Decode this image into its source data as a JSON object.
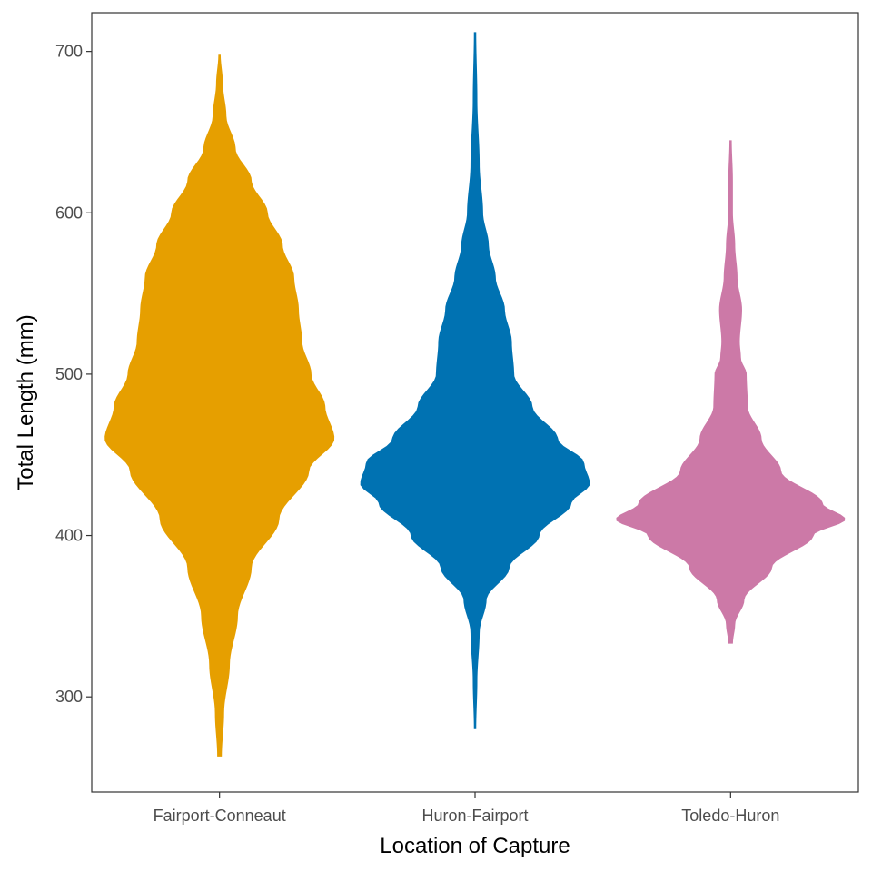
{
  "chart_data": {
    "type": "violin",
    "xlabel": "Location of Capture",
    "ylabel": "Total Length (mm)",
    "ylim": [
      241,
      724
    ],
    "y_ticks": [
      300,
      400,
      500,
      600,
      700
    ],
    "grid": false,
    "legend": "none",
    "categories": [
      "Fairport-Conneaut",
      "Huron-Fairport",
      "Toledo-Huron"
    ],
    "series": [
      {
        "category": "Fairport-Conneaut",
        "color": "#E69F00",
        "min": 263,
        "max": 698,
        "density_profile": [
          [
            263,
            0.02
          ],
          [
            290,
            0.04
          ],
          [
            320,
            0.09
          ],
          [
            350,
            0.16
          ],
          [
            380,
            0.28
          ],
          [
            410,
            0.52
          ],
          [
            440,
            0.78
          ],
          [
            460,
            1.0
          ],
          [
            480,
            0.92
          ],
          [
            500,
            0.8
          ],
          [
            520,
            0.72
          ],
          [
            540,
            0.69
          ],
          [
            560,
            0.65
          ],
          [
            580,
            0.55
          ],
          [
            600,
            0.42
          ],
          [
            620,
            0.28
          ],
          [
            640,
            0.14
          ],
          [
            660,
            0.06
          ],
          [
            680,
            0.03
          ],
          [
            698,
            0.01
          ]
        ]
      },
      {
        "category": "Huron-Fairport",
        "color": "#0072B2",
        "min": 280,
        "max": 712,
        "density_profile": [
          [
            280,
            0.01
          ],
          [
            310,
            0.02
          ],
          [
            340,
            0.04
          ],
          [
            360,
            0.1
          ],
          [
            380,
            0.3
          ],
          [
            400,
            0.56
          ],
          [
            420,
            0.84
          ],
          [
            432,
            1.0
          ],
          [
            445,
            0.95
          ],
          [
            460,
            0.72
          ],
          [
            480,
            0.5
          ],
          [
            500,
            0.34
          ],
          [
            520,
            0.32
          ],
          [
            540,
            0.26
          ],
          [
            560,
            0.18
          ],
          [
            580,
            0.12
          ],
          [
            600,
            0.07
          ],
          [
            630,
            0.04
          ],
          [
            670,
            0.02
          ],
          [
            712,
            0.01
          ]
        ]
      },
      {
        "category": "Toledo-Huron",
        "color": "#CC79A7",
        "min": 333,
        "max": 645,
        "density_profile": [
          [
            333,
            0.02
          ],
          [
            345,
            0.04
          ],
          [
            360,
            0.12
          ],
          [
            380,
            0.36
          ],
          [
            400,
            0.72
          ],
          [
            410,
            1.0
          ],
          [
            420,
            0.8
          ],
          [
            440,
            0.44
          ],
          [
            460,
            0.27
          ],
          [
            480,
            0.15
          ],
          [
            500,
            0.14
          ],
          [
            510,
            0.09
          ],
          [
            520,
            0.08
          ],
          [
            540,
            0.1
          ],
          [
            560,
            0.06
          ],
          [
            580,
            0.04
          ],
          [
            600,
            0.02
          ],
          [
            620,
            0.02
          ],
          [
            645,
            0.01
          ]
        ]
      }
    ]
  }
}
